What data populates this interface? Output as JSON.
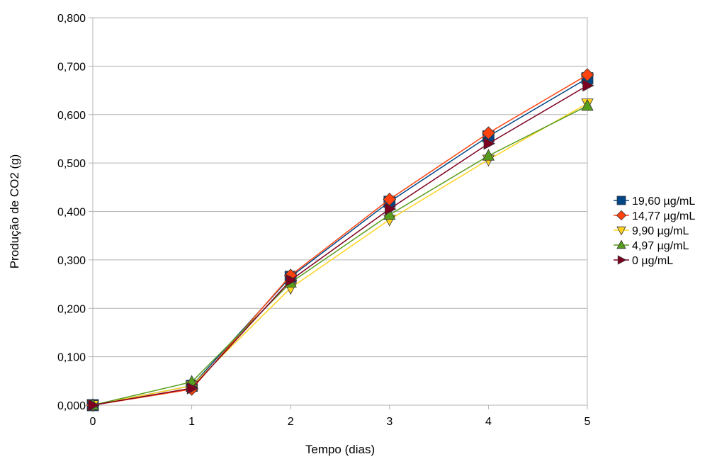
{
  "chart_data": {
    "type": "line",
    "title": "",
    "xlabel": "Tempo (dias)",
    "ylabel": "Produção de CO2 (g)",
    "xlim": [
      0,
      5
    ],
    "ylim": [
      0,
      0.8
    ],
    "x": [
      0,
      1,
      2,
      3,
      4,
      5
    ],
    "x_ticks": [
      "0",
      "1",
      "2",
      "3",
      "4",
      "5"
    ],
    "y_ticks": [
      {
        "value": 0.0,
        "label": "0,000"
      },
      {
        "value": 0.1,
        "label": "0,100"
      },
      {
        "value": 0.2,
        "label": "0,200"
      },
      {
        "value": 0.3,
        "label": "0,300"
      },
      {
        "value": 0.4,
        "label": "0,400"
      },
      {
        "value": 0.5,
        "label": "0,500"
      },
      {
        "value": 0.6,
        "label": "0,600"
      },
      {
        "value": 0.7,
        "label": "0,700"
      },
      {
        "value": 0.8,
        "label": "0,800"
      }
    ],
    "grid": "horizontal",
    "legend_position": "right",
    "series": [
      {
        "name": "19,60 µg/mL",
        "color": "#004586",
        "marker": "square",
        "values": [
          0.0,
          0.04,
          0.265,
          0.42,
          0.555,
          0.675
        ]
      },
      {
        "name": "14,77 µg/mL",
        "color": "#ff420e",
        "marker": "diamond",
        "values": [
          0.0,
          0.033,
          0.268,
          0.425,
          0.562,
          0.682
        ]
      },
      {
        "name": "9,90 µg/mL",
        "color": "#ffd320",
        "marker": "triangle-down",
        "values": [
          0.0,
          0.04,
          0.242,
          0.383,
          0.507,
          0.623
        ]
      },
      {
        "name": "4,97 µg/mL",
        "color": "#579d1c",
        "marker": "triangle-up",
        "values": [
          0.0,
          0.048,
          0.253,
          0.393,
          0.515,
          0.618
        ]
      },
      {
        "name": "0 µg/mL",
        "color": "#7e0021",
        "marker": "triangle-right",
        "values": [
          0.0,
          0.035,
          0.258,
          0.405,
          0.54,
          0.66
        ]
      }
    ]
  }
}
